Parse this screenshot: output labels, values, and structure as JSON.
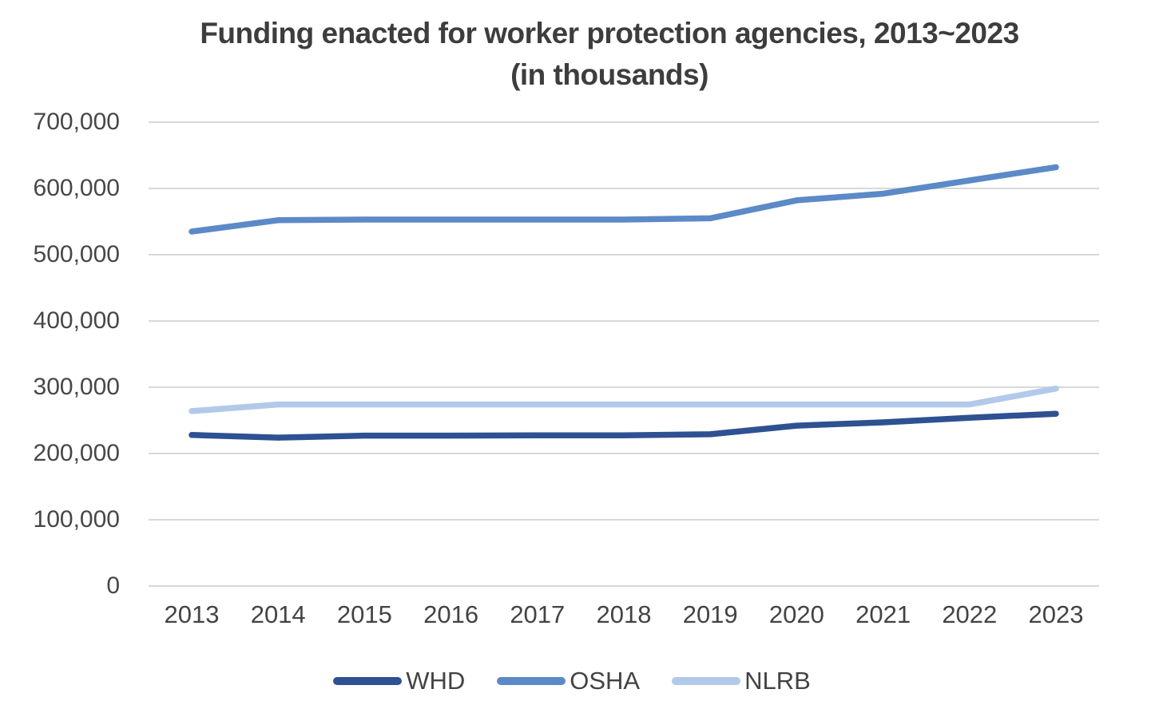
{
  "chart_data": {
    "type": "line",
    "title": "Funding enacted for worker protection agencies, 2013~2023",
    "subtitle": "(in thousands)",
    "xlabel": "",
    "ylabel": "",
    "categories": [
      "2013",
      "2014",
      "2015",
      "2016",
      "2017",
      "2018",
      "2019",
      "2020",
      "2021",
      "2022",
      "2023"
    ],
    "series": [
      {
        "name": "WHD",
        "color": "#2e5191",
        "values": [
          228000,
          224000,
          227000,
          227000,
          227500,
          227500,
          229000,
          242000,
          247000,
          254000,
          260000
        ]
      },
      {
        "name": "OSHA",
        "color": "#5b8ac6",
        "values": [
          535000,
          552000,
          553000,
          553000,
          553000,
          553000,
          555000,
          582000,
          592000,
          612000,
          632000
        ]
      },
      {
        "name": "NLRB",
        "color": "#b3c9e9",
        "values": [
          264000,
          274000,
          274000,
          274000,
          274000,
          274000,
          274000,
          274000,
          274000,
          274000,
          298000
        ]
      }
    ],
    "ylim": [
      0,
      700000
    ],
    "ytick_step": 100000,
    "ytick_labels": [
      "0",
      "100,000",
      "200,000",
      "300,000",
      "400,000",
      "500,000",
      "600,000",
      "700,000"
    ],
    "grid": "horizontal-only",
    "gridline_color": "#d8d8d8",
    "legend_position": "bottom",
    "text_color": "#434343",
    "background_color": "#ffffff"
  }
}
